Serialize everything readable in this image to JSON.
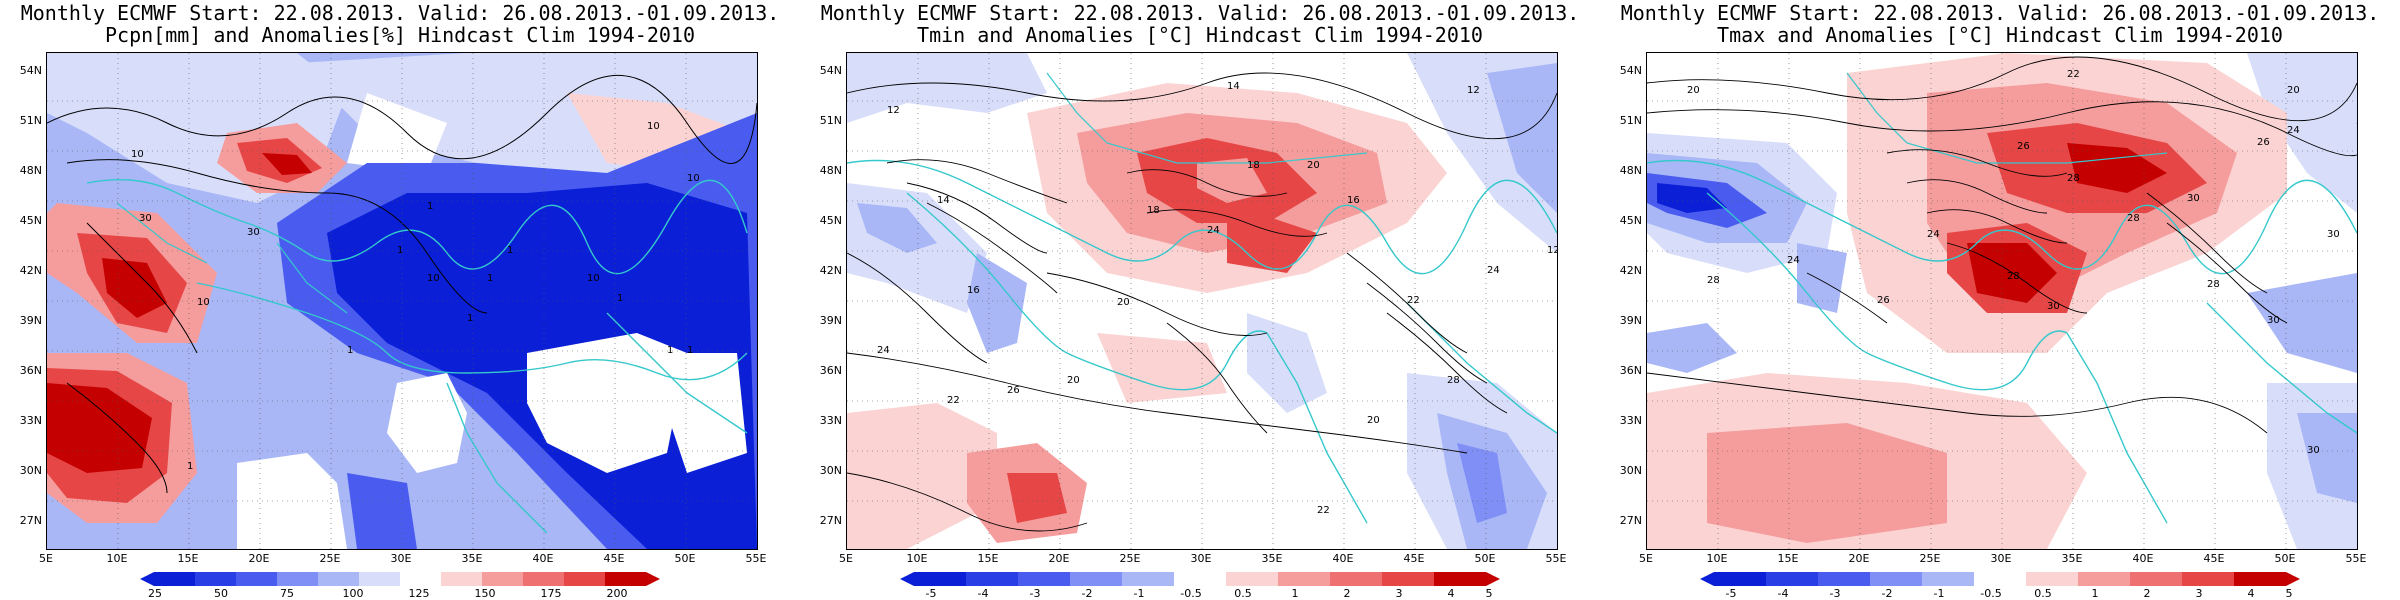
{
  "colors": {
    "deep_blue": "#0a1fd6",
    "mid_blue": "#4a5cf0",
    "light_blue": "#a9b7f7",
    "pale_blue": "#d8defa",
    "white": "#ffffff",
    "pale_red": "#fbd3d3",
    "light_red": "#f59c9c",
    "mid_red": "#e64646",
    "deep_red": "#c40000",
    "coast": "#35c8cc"
  },
  "panels": [
    {
      "title_line1": "Monthly ECMWF Start: 22.08.2013. Valid: 26.08.2013.-01.09.2013.",
      "title_line2": "Pcpn[mm] and Anomalies[%] Hindcast Clim 1994-2010",
      "lat_labels": [
        "54N",
        "51N",
        "48N",
        "45N",
        "42N",
        "39N",
        "36N",
        "33N",
        "30N",
        "27N"
      ],
      "lon_labels": [
        "5E",
        "10E",
        "15E",
        "20E",
        "25E",
        "30E",
        "35E",
        "40E",
        "45E",
        "50E",
        "55E"
      ],
      "colorbar_labels": [
        "25",
        "50",
        "75",
        "100",
        "125",
        "150",
        "175",
        "200"
      ],
      "contour_labels": [
        "10",
        "30",
        "10",
        "30",
        "1",
        "10",
        "1",
        "10",
        "1",
        "1",
        "1",
        "1",
        "10",
        "1",
        "1",
        "1",
        "10",
        "1"
      ]
    },
    {
      "title_line1": "Monthly ECMWF Start: 22.08.2013. Valid: 26.08.2013.-01.09.2013.",
      "title_line2": "Tmin and Anomalies [°C] Hindcast Clim 1994-2010",
      "lat_labels": [
        "54N",
        "51N",
        "48N",
        "45N",
        "42N",
        "39N",
        "36N",
        "33N",
        "30N",
        "27N"
      ],
      "lon_labels": [
        "5E",
        "10E",
        "15E",
        "20E",
        "25E",
        "30E",
        "35E",
        "40E",
        "45E",
        "50E",
        "55E"
      ],
      "colorbar_labels": [
        "-5",
        "-4",
        "-3",
        "-2",
        "-1",
        "-0.5",
        "0.5",
        "1",
        "2",
        "3",
        "4",
        "5"
      ],
      "contour_labels": [
        "12",
        "14",
        "12",
        "14",
        "18",
        "20",
        "18",
        "16",
        "24",
        "22",
        "20",
        "26",
        "22",
        "20",
        "24",
        "16",
        "20",
        "12",
        "28",
        "22",
        "24"
      ]
    },
    {
      "title_line1": "Monthly ECMWF Start: 22.08.2013. Valid: 26.08.2013.-01.09.2013.",
      "title_line2": "Tmax and Anomalies [°C] Hindcast Clim 1994-2010",
      "lat_labels": [
        "54N",
        "51N",
        "48N",
        "45N",
        "42N",
        "39N",
        "36N",
        "33N",
        "30N",
        "27N"
      ],
      "lon_labels": [
        "5E",
        "10E",
        "15E",
        "20E",
        "25E",
        "30E",
        "35E",
        "40E",
        "45E",
        "50E",
        "55E"
      ],
      "colorbar_labels": [
        "-5",
        "-4",
        "-3",
        "-2",
        "-1",
        "-0.5",
        "0.5",
        "1",
        "2",
        "3",
        "4",
        "5"
      ],
      "contour_labels": [
        "20",
        "22",
        "20",
        "24",
        "26",
        "28",
        "30",
        "26",
        "28",
        "24",
        "30",
        "28",
        "26",
        "30",
        "28",
        "30",
        "28",
        "24",
        "30"
      ]
    }
  ]
}
